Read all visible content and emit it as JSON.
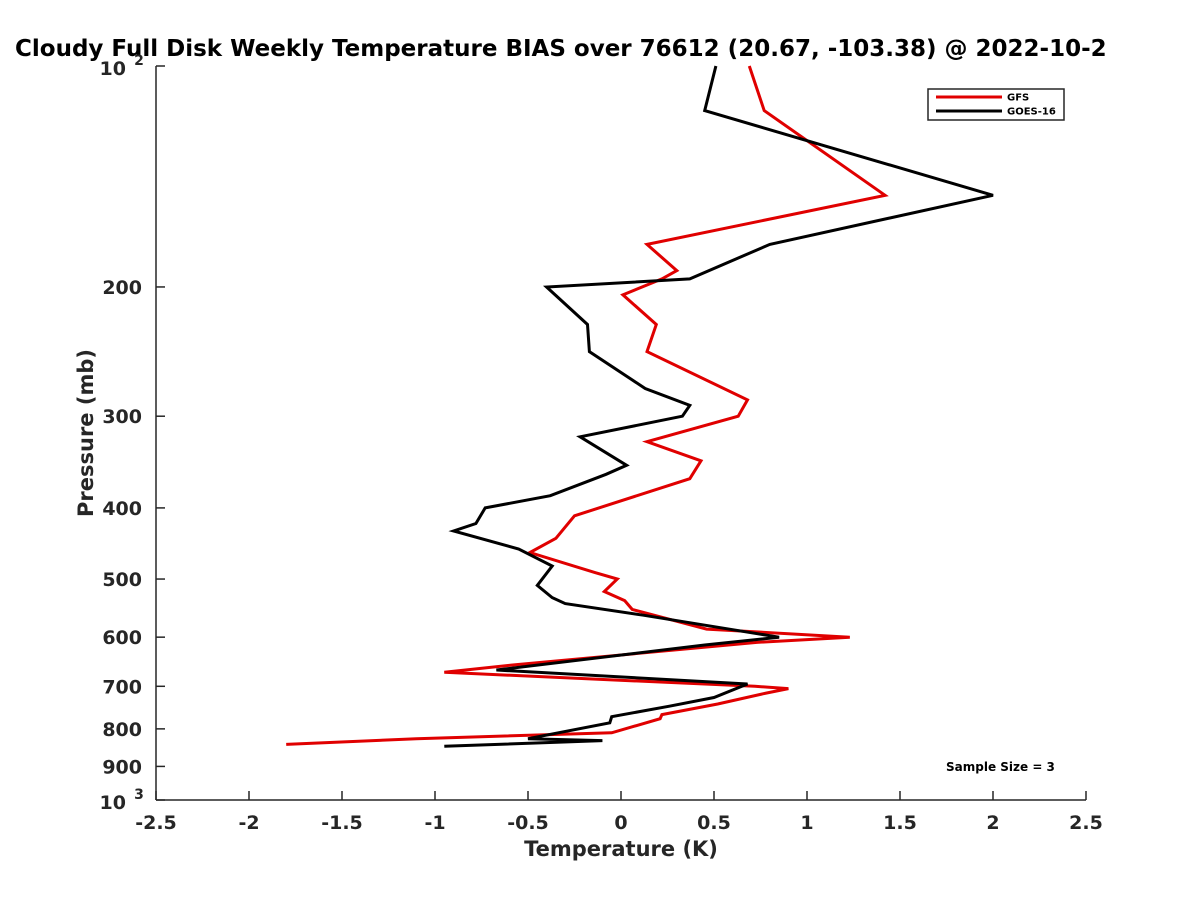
{
  "chart_data": {
    "type": "line",
    "title": "Cloudy Full Disk Weekly Temperature BIAS over 76612 (20.67, -103.38) @ 2022-10-2",
    "xlabel": "Temperature (K)",
    "ylabel": "Pressure (mb)",
    "xlim": [
      -2.5,
      2.5
    ],
    "ylim": [
      100,
      1000
    ],
    "yscale": "log",
    "y_reversed": true,
    "grid": false,
    "x_ticks": [
      {
        "value": -2.5,
        "label": "-2.5"
      },
      {
        "value": -2,
        "label": "-2"
      },
      {
        "value": -1.5,
        "label": "-1.5"
      },
      {
        "value": -1,
        "label": "-1"
      },
      {
        "value": -0.5,
        "label": "-0.5"
      },
      {
        "value": 0,
        "label": "0"
      },
      {
        "value": 0.5,
        "label": "0.5"
      },
      {
        "value": 1,
        "label": "1"
      },
      {
        "value": 1.5,
        "label": "1.5"
      },
      {
        "value": 2,
        "label": "2"
      },
      {
        "value": 2.5,
        "label": "2.5"
      }
    ],
    "y_ticks": [
      {
        "value": 200,
        "label": "200"
      },
      {
        "value": 300,
        "label": "300"
      },
      {
        "value": 400,
        "label": "400"
      },
      {
        "value": 500,
        "label": "500"
      },
      {
        "value": 600,
        "label": "600"
      },
      {
        "value": 700,
        "label": "700"
      },
      {
        "value": 800,
        "label": "800"
      },
      {
        "value": 900,
        "label": "900"
      }
    ],
    "y_power_ticks": [
      {
        "value": 100,
        "base": "10",
        "exp": "2"
      },
      {
        "value": 1000,
        "base": "10",
        "exp": "3"
      }
    ],
    "legend": {
      "placement": "top-right"
    },
    "annotation": "Sample Size = 3",
    "series": [
      {
        "name": "GFS",
        "color": "#e00000",
        "points": [
          [
            0.69,
            100
          ],
          [
            0.77,
            115
          ],
          [
            1.42,
            150
          ],
          [
            0.14,
            175
          ],
          [
            0.3,
            190
          ],
          [
            0.22,
            195
          ],
          [
            0.01,
            205
          ],
          [
            0.19,
            225
          ],
          [
            0.14,
            245
          ],
          [
            0.68,
            285
          ],
          [
            0.63,
            300
          ],
          [
            0.14,
            325
          ],
          [
            0.43,
            345
          ],
          [
            0.37,
            365
          ],
          [
            -0.25,
            410
          ],
          [
            -0.35,
            440
          ],
          [
            -0.49,
            460
          ],
          [
            -0.14,
            490
          ],
          [
            -0.02,
            500
          ],
          [
            -0.09,
            520
          ],
          [
            0.02,
            535
          ],
          [
            0.06,
            550
          ],
          [
            0.46,
            585
          ],
          [
            1.23,
            600
          ],
          [
            0.73,
            610
          ],
          [
            -0.59,
            655
          ],
          [
            -0.95,
            670
          ],
          [
            0.72,
            700
          ],
          [
            0.9,
            705
          ],
          [
            0.78,
            715
          ],
          [
            0.52,
            740
          ],
          [
            0.22,
            765
          ],
          [
            0.21,
            775
          ],
          [
            -0.05,
            810
          ],
          [
            -1.1,
            825
          ],
          [
            -1.8,
            840
          ]
        ]
      },
      {
        "name": "GOES-16",
        "color": "#000000",
        "points": [
          [
            0.51,
            100
          ],
          [
            0.45,
            115
          ],
          [
            2.0,
            150
          ],
          [
            0.8,
            175
          ],
          [
            0.37,
            195
          ],
          [
            -0.4,
            200
          ],
          [
            -0.18,
            225
          ],
          [
            -0.17,
            245
          ],
          [
            0.13,
            275
          ],
          [
            0.37,
            290
          ],
          [
            0.33,
            300
          ],
          [
            -0.22,
            320
          ],
          [
            0.03,
            350
          ],
          [
            -0.08,
            360
          ],
          [
            -0.38,
            385
          ],
          [
            -0.73,
            400
          ],
          [
            -0.78,
            420
          ],
          [
            -0.9,
            430
          ],
          [
            -0.55,
            455
          ],
          [
            -0.37,
            480
          ],
          [
            -0.45,
            510
          ],
          [
            -0.37,
            530
          ],
          [
            -0.3,
            540
          ],
          [
            0.12,
            560
          ],
          [
            0.85,
            600
          ],
          [
            0.45,
            615
          ],
          [
            -0.67,
            665
          ],
          [
            0.68,
            695
          ],
          [
            0.5,
            725
          ],
          [
            0.26,
            745
          ],
          [
            -0.05,
            770
          ],
          [
            -0.06,
            785
          ],
          [
            -0.5,
            825
          ],
          [
            -0.1,
            830
          ],
          [
            -0.95,
            845
          ]
        ]
      }
    ]
  }
}
